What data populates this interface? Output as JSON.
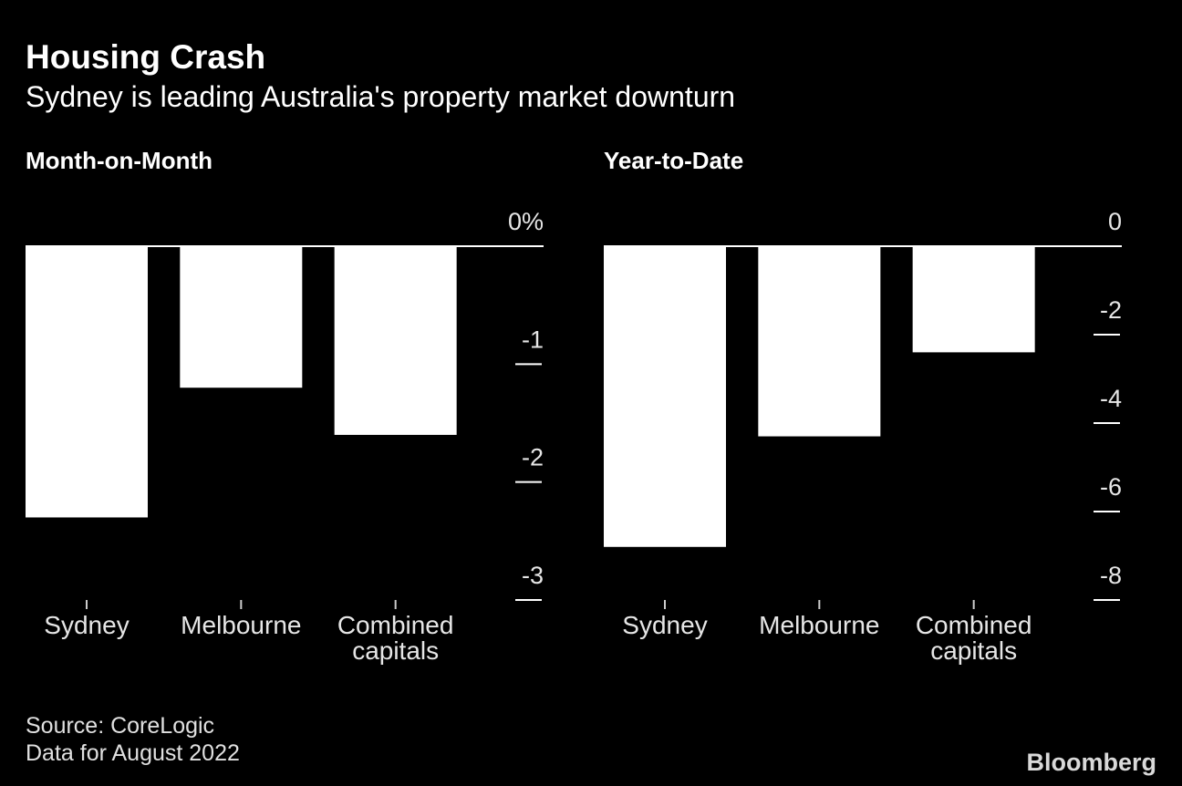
{
  "title": "Housing Crash",
  "subtitle": "Sydney is leading Australia's property market downturn",
  "chart_data": [
    {
      "type": "bar",
      "title": "Month-on-Month",
      "categories": [
        "Sydney",
        "Melbourne",
        "Combined capitals"
      ],
      "values": [
        -2.3,
        -1.2,
        -1.6
      ],
      "color": "#ffffff",
      "ylim": [
        -3,
        0
      ],
      "yticks": [
        {
          "value": 0,
          "label": "0%"
        },
        -1,
        -2,
        -3
      ],
      "grid": false
    },
    {
      "type": "bar",
      "title": "Year-to-Date",
      "categories": [
        "Sydney",
        "Melbourne",
        "Combined capitals"
      ],
      "values": [
        -6.8,
        -4.3,
        -2.4
      ],
      "color": "#ffffff",
      "ylim": [
        -8,
        0
      ],
      "yticks": [
        0,
        -2,
        -4,
        -6,
        -8
      ],
      "grid": false
    }
  ],
  "source": "Source: CoreLogic",
  "note": "Data for August 2022",
  "brand": "Bloomberg"
}
